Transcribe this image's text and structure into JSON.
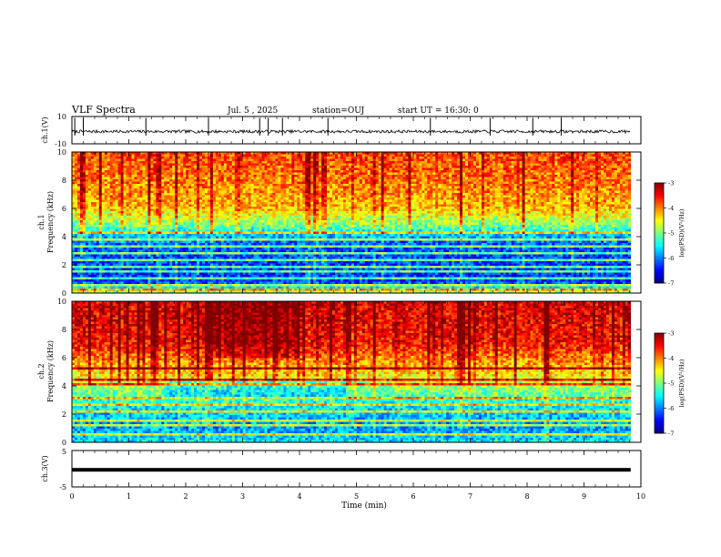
{
  "header": {
    "title": "VLF Spectra",
    "date": "Jul. 5 , 2025",
    "station": "station=OUJ",
    "start": "start UT = 16:30: 0"
  },
  "chart_data": [
    {
      "type": "line",
      "name": "ch1-waveform",
      "ylabel": "ch.1(V)",
      "ylim": [
        -10,
        10
      ],
      "yticks": [
        "10",
        "-10"
      ],
      "xlim": [
        0,
        10
      ],
      "baseline": -1,
      "spike_times_min": [
        0.05,
        0.2,
        1.3,
        2.4,
        3.3,
        3.45,
        3.7,
        4.5,
        6.3,
        7.35,
        8.1,
        8.6
      ]
    },
    {
      "type": "heatmap",
      "name": "ch1-spectrogram",
      "ylabel_top": "ch.1",
      "ylabel": "Frequency (kHz)",
      "xlim": [
        0,
        9.82
      ],
      "ylim": [
        0,
        10
      ],
      "yticks": [
        "0",
        "2",
        "4",
        "6",
        "8",
        "10"
      ],
      "colorbar": {
        "label": "log(PSD)(V²/Hz)",
        "range": [
          -7,
          -3
        ],
        "ticks": [
          "-3",
          "-4",
          "-5",
          "-6",
          "-7"
        ]
      },
      "bands_khz": [
        0.3,
        0.6,
        1.1,
        1.6,
        1.9,
        2.3,
        2.8,
        3.3,
        3.8,
        4.3
      ],
      "log_psd_profile": [
        [
          0,
          -4.8
        ],
        [
          0.8,
          -6.4
        ],
        [
          2.0,
          -6.3
        ],
        [
          3.5,
          -6.2
        ],
        [
          4.3,
          -5.6
        ],
        [
          5,
          -5.0
        ],
        [
          6,
          -4.4
        ],
        [
          8,
          -4.1
        ],
        [
          10,
          -3.9
        ]
      ]
    },
    {
      "type": "heatmap",
      "name": "ch2-spectrogram",
      "ylabel_top": "ch.2",
      "ylabel": "Frequency (kHz)",
      "xlim": [
        0,
        9.82
      ],
      "ylim": [
        0,
        10
      ],
      "yticks": [
        "0",
        "2",
        "4",
        "6",
        "8",
        "10"
      ],
      "colorbar": {
        "label": "log(PSD)(V²/Hz)",
        "range": [
          -7,
          -3
        ],
        "ticks": [
          "-3",
          "-4",
          "-5",
          "-6",
          "-7"
        ]
      },
      "bands_khz": [
        0.5,
        1.2,
        1.6,
        2.2,
        2.7,
        3.2,
        4.1,
        4.4,
        5.3
      ],
      "log_psd_profile": [
        [
          0,
          -5.6
        ],
        [
          1.0,
          -6.0
        ],
        [
          2.5,
          -5.6
        ],
        [
          4.0,
          -4.9
        ],
        [
          5.5,
          -4.3
        ],
        [
          7,
          -3.7
        ],
        [
          10,
          -3.5
        ]
      ]
    },
    {
      "type": "line",
      "name": "ch3-waveform",
      "ylabel": "ch.3(V)",
      "ylim": [
        -5,
        5
      ],
      "yticks": [
        "5",
        "-5"
      ],
      "xlim": [
        0,
        10
      ],
      "baseline": -0.3
    }
  ],
  "xaxis": {
    "label": "Time (min)",
    "ticks": [
      "0",
      "1",
      "2",
      "3",
      "4",
      "5",
      "6",
      "7",
      "8",
      "9",
      "10"
    ]
  }
}
